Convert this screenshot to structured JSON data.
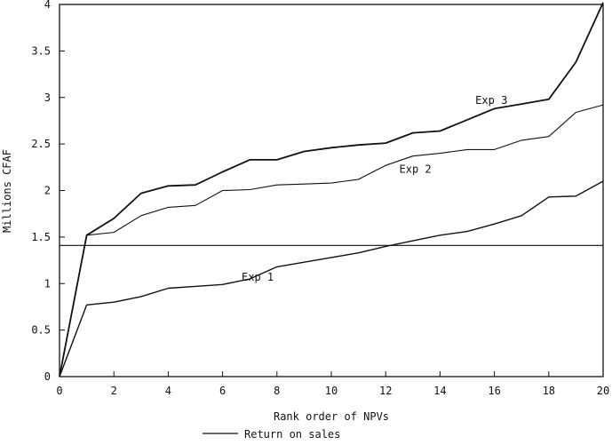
{
  "chart_data": {
    "type": "line",
    "xlabel": "Rank order of NPVs",
    "ylabel": "Millions CFAF",
    "xlim": [
      0,
      20
    ],
    "ylim": [
      0,
      4
    ],
    "x_ticks": [
      "0",
      "2",
      "4",
      "6",
      "8",
      "10",
      "12",
      "14",
      "16",
      "18",
      "20"
    ],
    "y_ticks": [
      "0",
      "0.5",
      "1",
      "1.5",
      "2",
      "2.5",
      "3",
      "3.5",
      "4"
    ],
    "x": [
      0,
      1,
      2,
      3,
      4,
      5,
      6,
      7,
      8,
      9,
      10,
      11,
      12,
      13,
      14,
      15,
      16,
      17,
      18,
      19,
      20
    ],
    "series": [
      {
        "name": "Exp 1",
        "values": [
          0,
          0.77,
          0.8,
          0.86,
          0.95,
          0.97,
          0.99,
          1.05,
          1.18,
          1.23,
          1.28,
          1.33,
          1.4,
          1.46,
          1.52,
          1.56,
          1.64,
          1.73,
          1.93,
          1.94,
          2.1
        ]
      },
      {
        "name": "Exp 2",
        "values": [
          0,
          1.52,
          1.55,
          1.73,
          1.82,
          1.84,
          2.0,
          2.01,
          2.06,
          2.07,
          2.08,
          2.12,
          2.27,
          2.37,
          2.4,
          2.44,
          2.44,
          2.54,
          2.58,
          2.84,
          2.92
        ]
      },
      {
        "name": "Exp 3",
        "values": [
          0,
          1.52,
          1.7,
          1.97,
          2.05,
          2.06,
          2.2,
          2.33,
          2.33,
          2.42,
          2.46,
          2.49,
          2.51,
          2.62,
          2.64,
          2.76,
          2.88,
          2.93,
          2.98,
          3.38,
          4.02
        ]
      }
    ],
    "reference_lines": [
      {
        "name": "Return on sales",
        "y": 1.41
      }
    ],
    "legend": {
      "placement": "bottom-center",
      "entries": [
        "Return on sales"
      ]
    },
    "grid": false,
    "colors": {
      "line": "#111111",
      "background": "#ffffff"
    }
  }
}
